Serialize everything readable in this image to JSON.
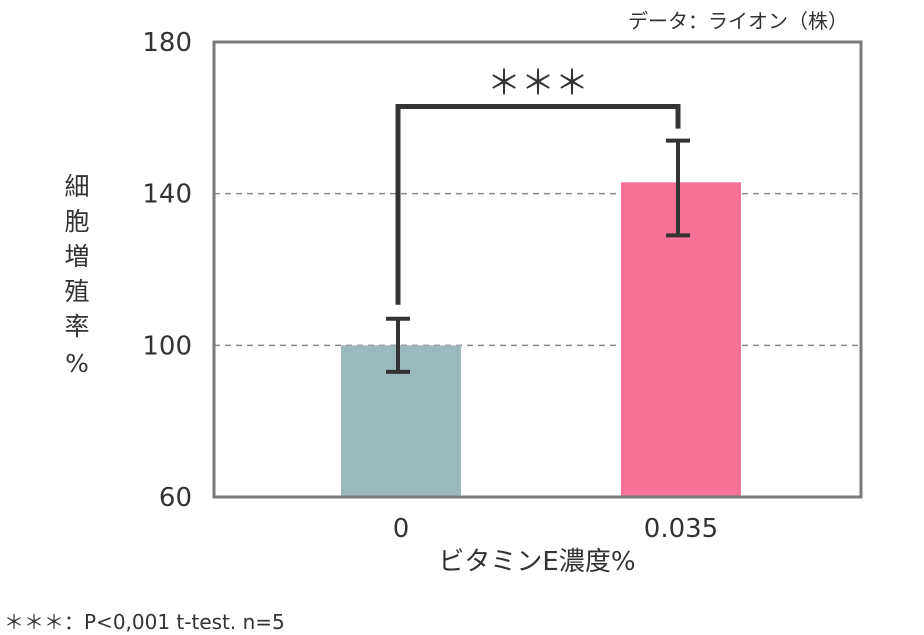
{
  "chart_data": {
    "type": "bar",
    "source": "データ：ライオン（株）",
    "categories": [
      "0",
      "0.035"
    ],
    "values": [
      100,
      143
    ],
    "errors": [
      {
        "low": 93,
        "high": 107
      },
      {
        "low": 129,
        "high": 154
      }
    ],
    "colors": [
      "#9bb8bb",
      "#f87198"
    ],
    "xlabel": "ビタミンE濃度%",
    "ylabel": [
      "細",
      "胞",
      "増",
      "殖",
      "率",
      "%"
    ],
    "ylim": [
      60,
      180
    ],
    "yticks": [
      "60",
      "100",
      "140",
      "180"
    ],
    "gridlines": [
      100,
      140
    ],
    "significance": "＊＊＊",
    "bracket_top": 163,
    "footnote": "＊＊＊：P<0,001 t-test. n=5"
  }
}
